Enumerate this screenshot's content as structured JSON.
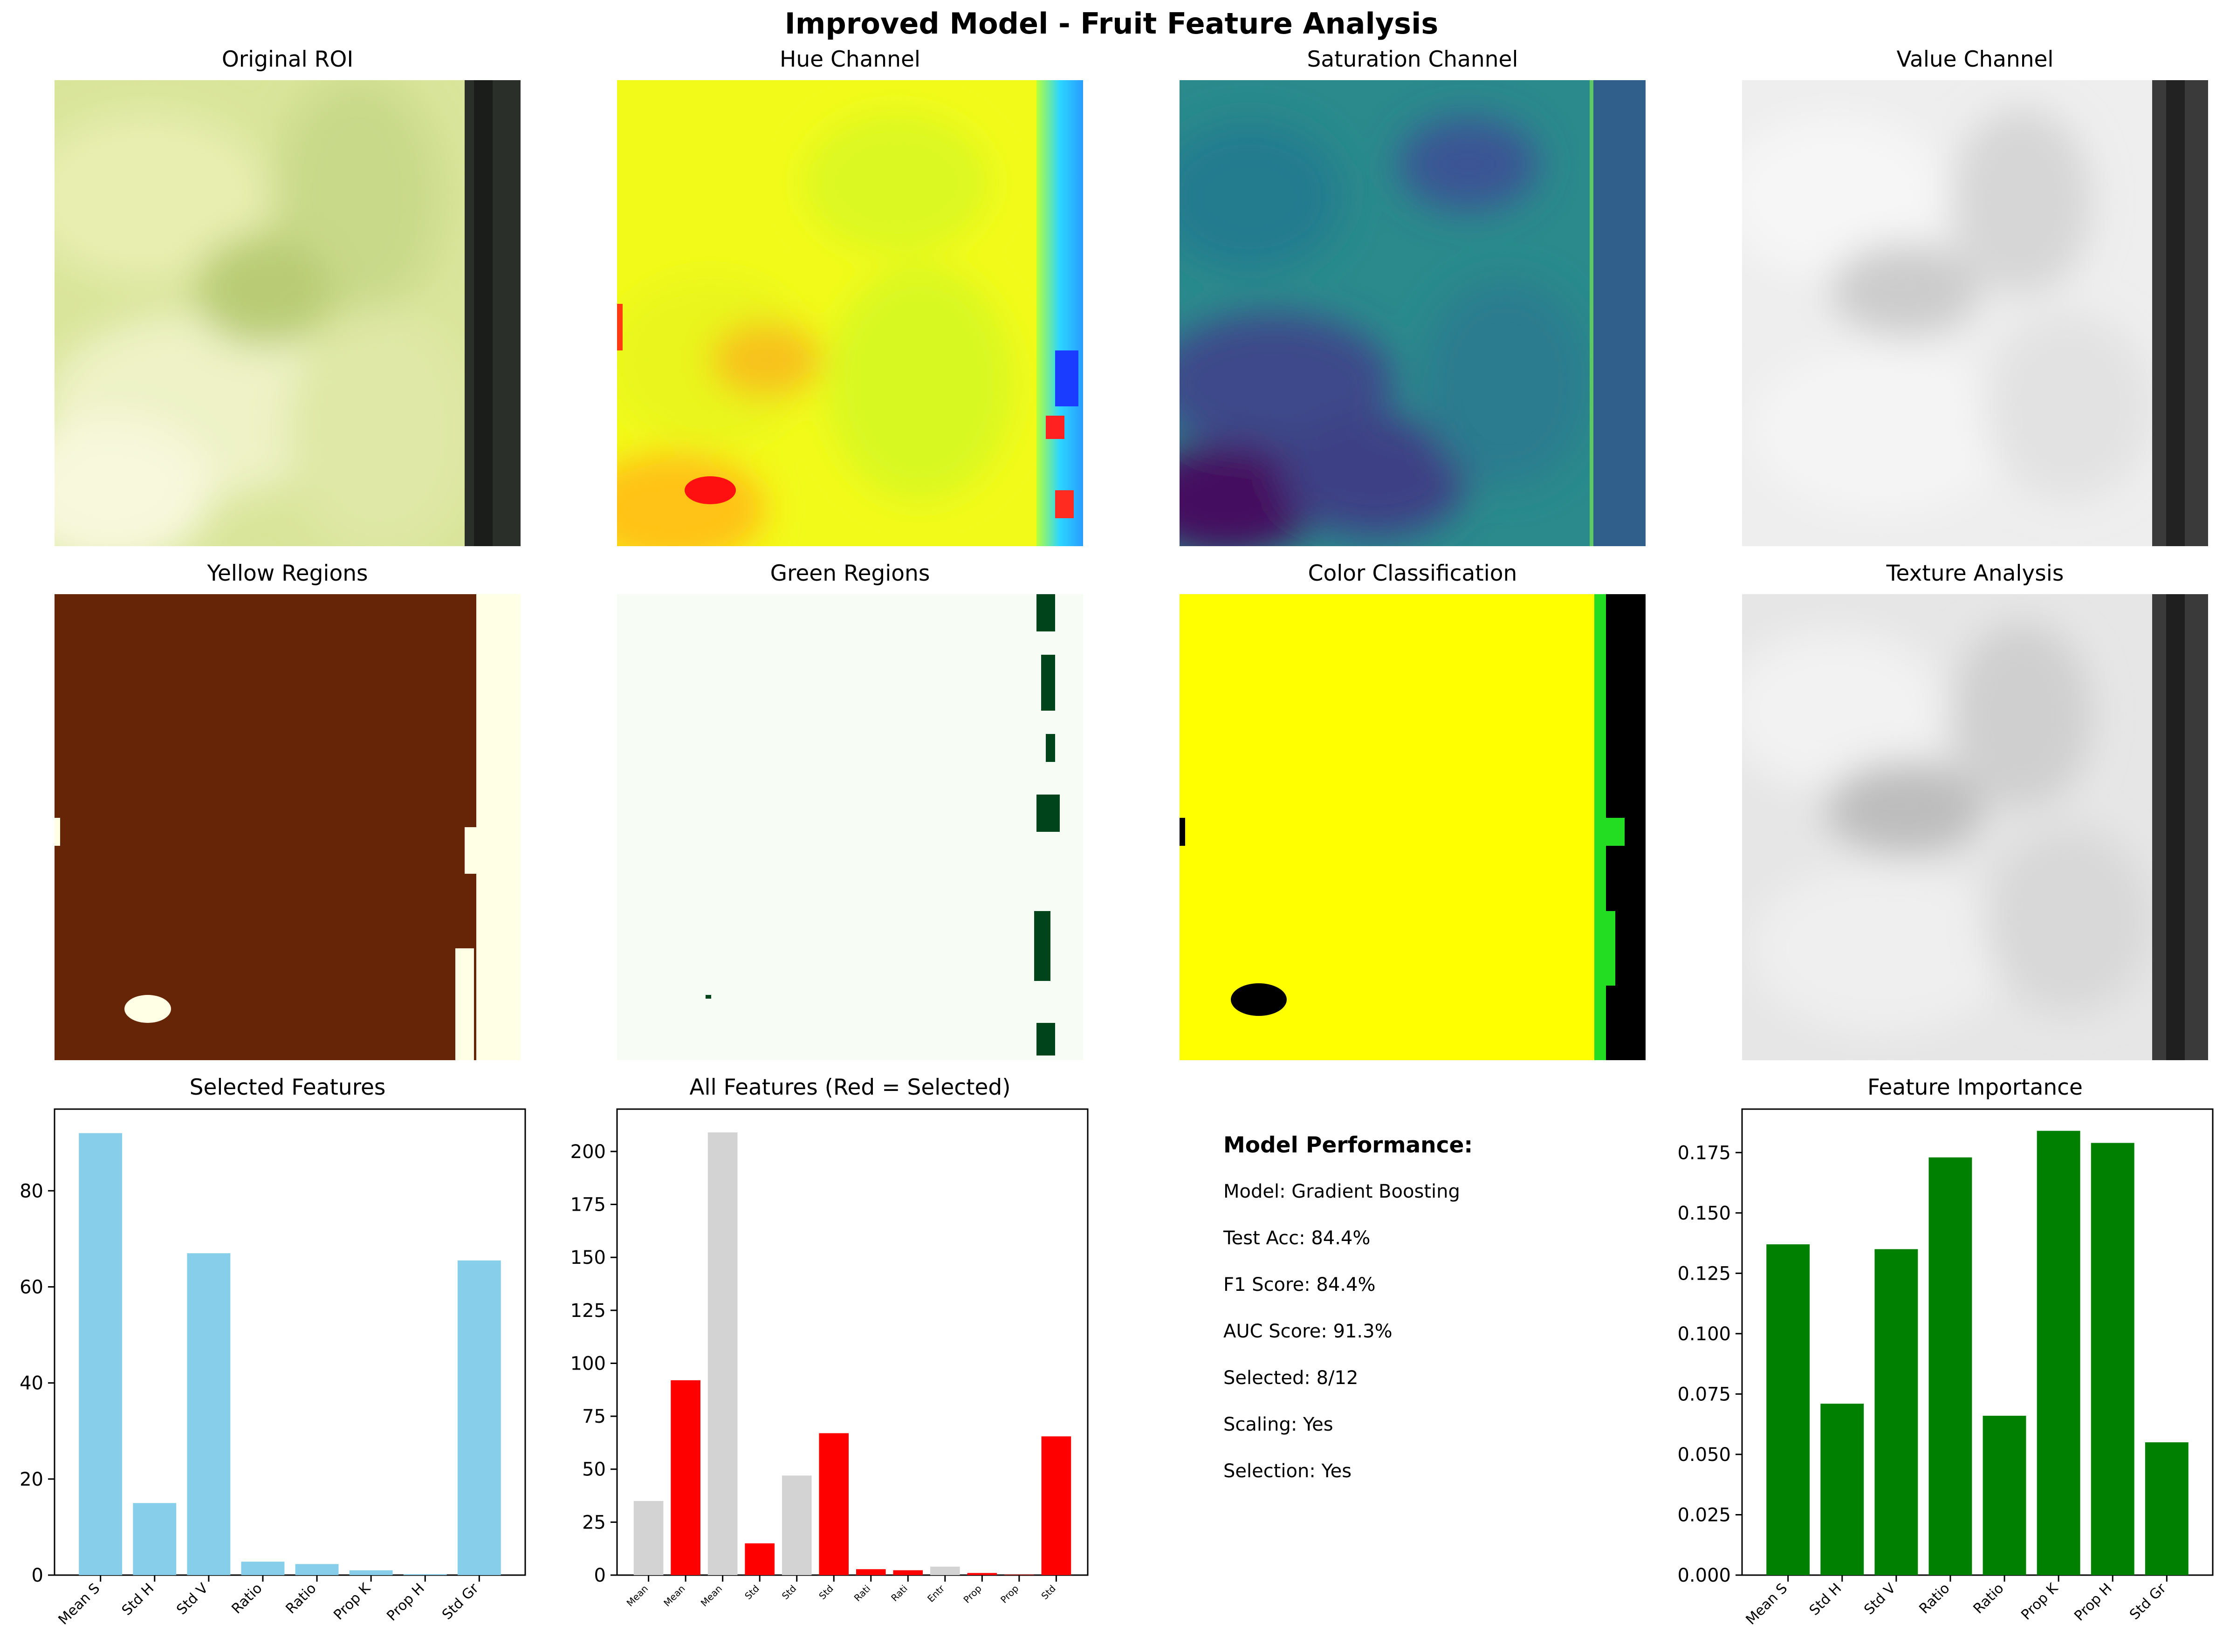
{
  "figure_title": "Improved Model - Fruit Feature Analysis",
  "image_panels": [
    {
      "title": "Original ROI",
      "kind": "original"
    },
    {
      "title": "Hue Channel",
      "kind": "hue"
    },
    {
      "title": "Saturation Channel",
      "kind": "saturation"
    },
    {
      "title": "Value Channel",
      "kind": "value"
    },
    {
      "title": "Yellow Regions",
      "kind": "yellow-mask"
    },
    {
      "title": "Green Regions",
      "kind": "green-mask"
    },
    {
      "title": "Color Classification",
      "kind": "classification"
    },
    {
      "title": "Texture Analysis",
      "kind": "texture"
    }
  ],
  "performance": {
    "heading": "Model Performance:",
    "lines": [
      "Model: Gradient Boosting",
      "Test Acc: 84.4%",
      "F1 Score: 84.4%",
      "AUC Score: 91.3%",
      "Selected: 8/12",
      "Scaling: Yes",
      "Selection: Yes"
    ]
  },
  "colors": {
    "selected_bar": "#87ceeb",
    "all_selected": "#ff0000",
    "all_unselected": "#d3d3d3",
    "importance_bar": "#008000"
  },
  "chart_data": [
    {
      "type": "bar",
      "title": "Selected Features",
      "categories": [
        "Mean S",
        "Std H",
        "Std V",
        "Ratio",
        "Ratio",
        "Prop K",
        "Prop H",
        "Std Gr"
      ],
      "values": [
        92,
        15,
        67,
        2.8,
        2.3,
        1.0,
        0.2,
        65.5
      ],
      "ylim": [
        0,
        97
      ],
      "yticks": [
        0,
        20,
        40,
        60,
        80
      ],
      "tick_labels": [
        "0",
        "20",
        "40",
        "60",
        "80"
      ],
      "grid": false
    },
    {
      "type": "bar",
      "title": "All Features (Red = Selected)",
      "categories": [
        "Mean",
        "Mean",
        "Mean",
        "Std",
        "Std",
        "Std",
        "Rati",
        "Rati",
        "Entr",
        "Prop",
        "Prop",
        "Std"
      ],
      "values": [
        35,
        92,
        209,
        15,
        47,
        67,
        2.8,
        2.3,
        4,
        1.0,
        0.2,
        65.5
      ],
      "selected": [
        false,
        true,
        false,
        true,
        false,
        true,
        true,
        true,
        false,
        true,
        true,
        true
      ],
      "ylim": [
        0,
        220
      ],
      "yticks": [
        0,
        25,
        50,
        75,
        100,
        125,
        150,
        175,
        200
      ],
      "tick_labels": [
        "0",
        "25",
        "50",
        "75",
        "100",
        "125",
        "150",
        "175",
        "200"
      ],
      "grid": false
    },
    {
      "type": "bar",
      "title": "Feature Importance",
      "categories": [
        "Mean S",
        "Std H",
        "Std V",
        "Ratio",
        "Ratio",
        "Prop K",
        "Prop H",
        "Std Gr"
      ],
      "values": [
        0.137,
        0.071,
        0.135,
        0.173,
        0.066,
        0.184,
        0.179,
        0.055
      ],
      "ylim": [
        0,
        0.193
      ],
      "yticks": [
        0,
        0.025,
        0.05,
        0.075,
        0.1,
        0.125,
        0.15,
        0.175
      ],
      "tick_labels": [
        "0.000",
        "0.025",
        "0.050",
        "0.075",
        "0.100",
        "0.125",
        "0.150",
        "0.175"
      ],
      "grid": false
    }
  ]
}
